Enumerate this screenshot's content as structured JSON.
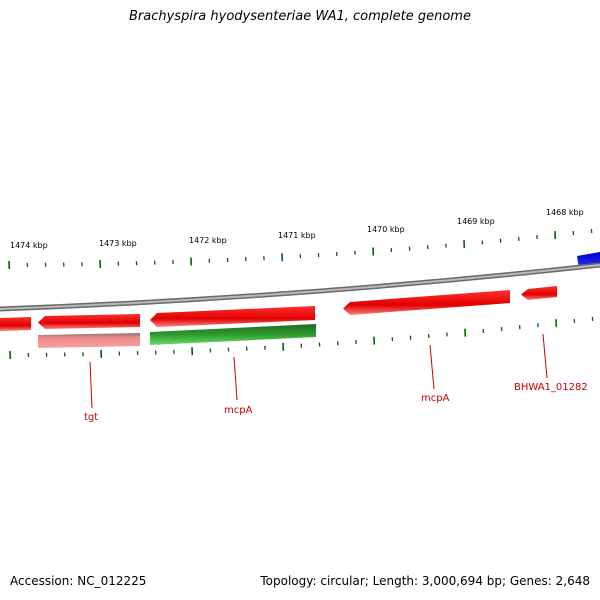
{
  "title": "Brachyspira hyodysenteriae WA1, complete genome",
  "footer": {
    "accession": "Accession: NC_012225",
    "summary": "Topology: circular; Length: 3,000,694 bp; Genes: 2,648"
  },
  "colors": {
    "forward_gene": "#e00000",
    "reverse_gene_light": "#e88080",
    "rna_gene": "#2a9a2a",
    "other_feature": "#0000ee",
    "tick": "#006600",
    "backbone": "#8a8a8a",
    "label": "#cc0000"
  },
  "scale_labels": [
    "1474 kbp",
    "1473 kbp",
    "1472 kbp",
    "1471 kbp",
    "1470 kbp",
    "1469 kbp",
    "1468 kbp"
  ],
  "gene_labels": [
    "tgt",
    "mcpA",
    "mcpA",
    "BHWA1_01282"
  ]
}
